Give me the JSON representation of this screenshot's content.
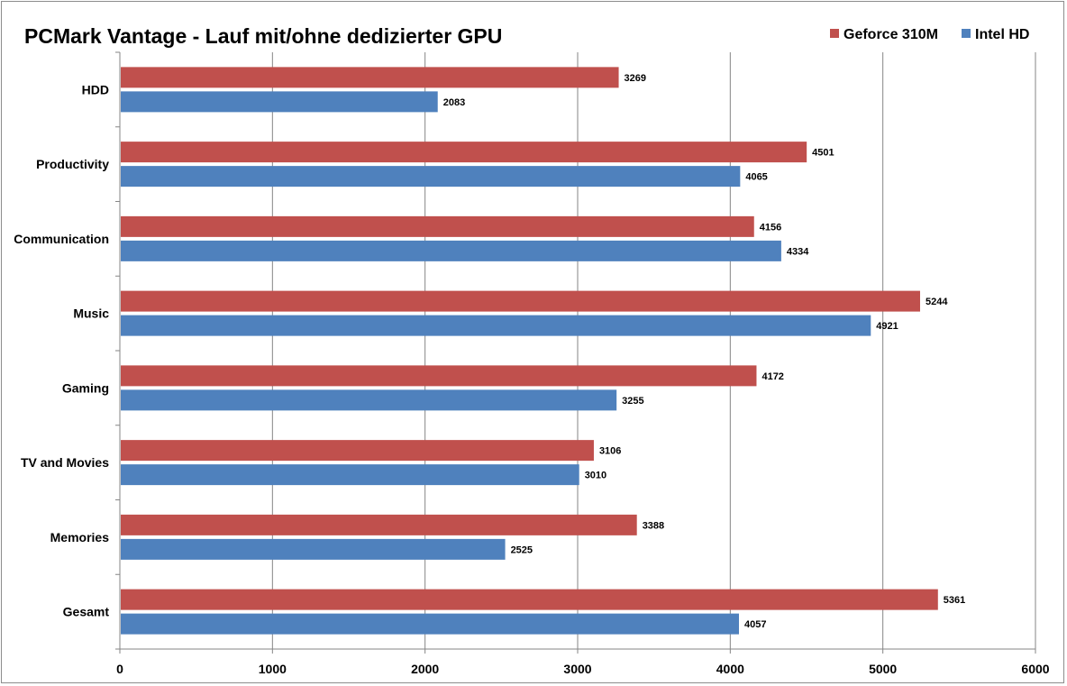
{
  "chart_data": {
    "type": "bar",
    "orientation": "horizontal",
    "title": "PCMark Vantage - Lauf mit/ohne dedizierter GPU",
    "categories": [
      "HDD",
      "Productivity",
      "Communication",
      "Music",
      "Gaming",
      "TV and Movies",
      "Memories",
      "Gesamt"
    ],
    "series": [
      {
        "name": "Geforce 310M",
        "color": "#c0504d",
        "values": [
          3269,
          4501,
          4156,
          5244,
          4172,
          3106,
          3388,
          5361
        ]
      },
      {
        "name": "Intel HD",
        "color": "#4f81bd",
        "values": [
          2083,
          4065,
          4334,
          4921,
          3255,
          3010,
          2525,
          4057
        ]
      }
    ],
    "xlim": [
      0,
      6000
    ],
    "xticks": [
      0,
      1000,
      2000,
      3000,
      4000,
      5000,
      6000
    ],
    "xlabel": "",
    "ylabel": "",
    "grid": "vertical",
    "legend_position": "top-right",
    "gridline_color": "#868686",
    "axis_color": "#868686"
  }
}
